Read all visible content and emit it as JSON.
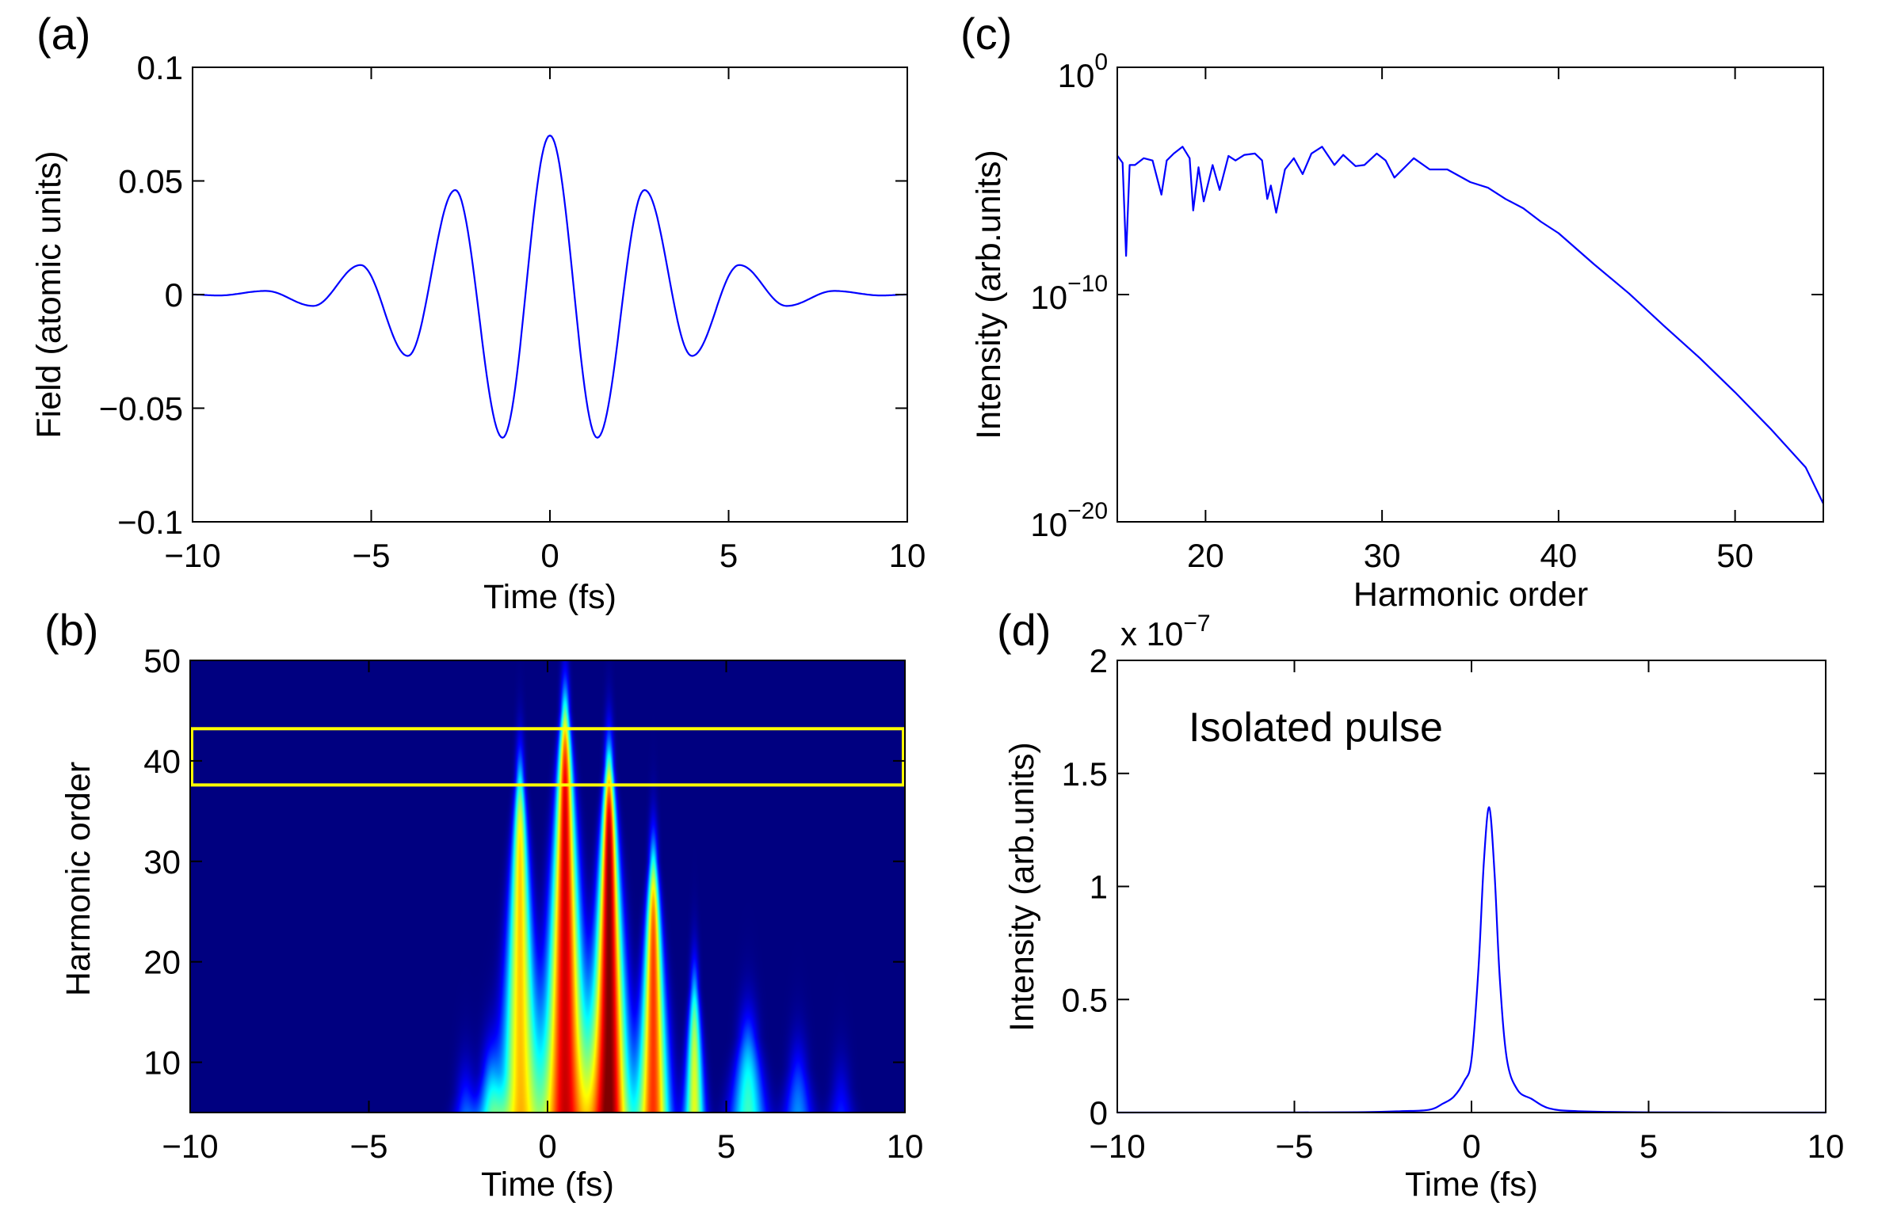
{
  "chart_data": [
    {
      "panel": "(a)",
      "type": "line",
      "xlabel": "Time (fs)",
      "ylabel": "Field (atomic units)",
      "xlim": [
        -10,
        10
      ],
      "ylim": [
        -0.1,
        0.1
      ],
      "xticks": [
        -10,
        -5,
        0,
        5,
        10
      ],
      "xtick_labels": [
        "−10",
        "−5",
        "0",
        "5",
        "10"
      ],
      "yticks": [
        -0.1,
        -0.05,
        0,
        0.05,
        0.1
      ],
      "ytick_labels": [
        "−0.1",
        "−0.05",
        "0",
        "0.05",
        "0.1"
      ],
      "line_color": "#0000ff",
      "series": [
        {
          "x": [
            -10,
            -9.275,
            -7.95,
            -6.625,
            -5.3,
            -3.975,
            -2.65,
            -1.325,
            0,
            1.325,
            2.65,
            3.975,
            5.3,
            6.625,
            7.95,
            9.275,
            10
          ],
          "y": [
            0,
            -0.0004,
            0.0016,
            -0.005,
            0.013,
            -0.027,
            0.046,
            -0.063,
            0.07,
            -0.063,
            0.046,
            -0.027,
            0.013,
            -0.005,
            0.0016,
            -0.0004,
            0
          ]
        }
      ]
    },
    {
      "panel": "(b)",
      "type": "heatmap",
      "xlabel": "Time (fs)",
      "ylabel": "Harmonic order",
      "xlim": [
        -10,
        10
      ],
      "ylim": [
        5,
        50
      ],
      "xticks": [
        -10,
        -5,
        0,
        5,
        10
      ],
      "xtick_labels": [
        "−10",
        "−5",
        "0",
        "5",
        "10"
      ],
      "yticks": [
        10,
        20,
        30,
        40,
        50
      ],
      "ytick_labels": [
        "10",
        "20",
        "30",
        "40",
        "50"
      ],
      "colormap": "jet",
      "bursts": [
        {
          "time": -2.3,
          "max_harmonic": 7,
          "relative_intensity": 0.3
        },
        {
          "time": -1.6,
          "max_harmonic": 9,
          "relative_intensity": 0.45
        },
        {
          "time": -0.78,
          "max_harmonic": 38.5,
          "relative_intensity": 0.68
        },
        {
          "time": 0.48,
          "max_harmonic": 45,
          "relative_intensity": 0.92
        },
        {
          "time": 1.71,
          "max_harmonic": 39.5,
          "relative_intensity": 1.0
        },
        {
          "time": 2.95,
          "max_harmonic": 30,
          "relative_intensity": 0.82
        },
        {
          "time": 4.1,
          "max_harmonic": 17.5,
          "relative_intensity": 0.6
        },
        {
          "time": 5.6,
          "max_harmonic": 12.5,
          "relative_intensity": 0.45
        },
        {
          "time": 7.0,
          "max_harmonic": 9.5,
          "relative_intensity": 0.3
        },
        {
          "time": 8.2,
          "max_harmonic": 7.5,
          "relative_intensity": 0.2
        }
      ],
      "highlight_box": {
        "harmonic_range": [
          37.6,
          43.2
        ],
        "time_range": [
          -10,
          10
        ],
        "color": "#ffff00"
      }
    },
    {
      "panel": "(c)",
      "type": "line",
      "xlabel": "Harmonic order",
      "ylabel": "Intensity (arb.units)",
      "yscale": "log",
      "xlim": [
        15,
        55
      ],
      "ylim": [
        1e-20,
        1
      ],
      "xticks": [
        20,
        30,
        40,
        50
      ],
      "xtick_labels": [
        "20",
        "30",
        "40",
        "50"
      ],
      "yticks": [
        1e-20,
        1e-10,
        1
      ],
      "ytick_labels": [
        {
          "base": "10",
          "exp": "−20"
        },
        {
          "base": "10",
          "exp": "−10"
        },
        {
          "base": "10",
          "exp": "0"
        }
      ],
      "line_color": "#0000ff",
      "series": [
        {
          "x": [
            15,
            15.3,
            15.5,
            15.7,
            16,
            16.5,
            17,
            17.5,
            17.8,
            18.2,
            18.7,
            19.1,
            19.3,
            19.6,
            19.9,
            20.4,
            20.8,
            21.3,
            21.7,
            22.2,
            22.8,
            23.2,
            23.5,
            23.7,
            24,
            24.5,
            25,
            25.5,
            26,
            26.6,
            27.3,
            27.8,
            28.5,
            29,
            29.7,
            30.2,
            30.7,
            31.8,
            32.7,
            33.7,
            35,
            36,
            37,
            38,
            39,
            40,
            42,
            44,
            46,
            48,
            50,
            52,
            54,
            55
          ],
          "y": [
            0.00013,
            6.3e-05,
            5e-09,
            5e-05,
            5e-05,
            0.0001,
            7.9e-05,
            2.5e-06,
            7.9e-05,
            0.00016,
            0.00032,
            0.0001,
            5e-07,
            4e-05,
            1.26e-06,
            5e-05,
            4e-06,
            0.000126,
            7.9e-05,
            0.00014,
            0.00016,
            8e-05,
            1.6e-06,
            6.3e-06,
            4e-07,
            3.2e-05,
            0.0001,
            2e-05,
            0.00016,
            0.00032,
            5e-05,
            0.00014,
            4.5e-05,
            5e-05,
            0.00016,
            8e-05,
            1.4e-05,
            0.0001,
            3.2e-05,
            3.2e-05,
            8.9e-06,
            5e-06,
            1.6e-06,
            6.3e-07,
            1.6e-07,
            5e-08,
            2.2e-09,
            1.1e-10,
            4e-12,
            1.6e-13,
            5e-15,
            1.26e-16,
            2.5e-18,
            6.3e-20
          ]
        }
      ]
    },
    {
      "panel": "(d)",
      "type": "line",
      "xlabel": "Time (fs)",
      "ylabel": "Intensity (arb.units)",
      "xlim": [
        -10,
        10
      ],
      "ylim": [
        0,
        2
      ],
      "y_multiplier": {
        "prefix": "x 10",
        "exp": "−7"
      },
      "xticks": [
        -10,
        -5,
        0,
        5,
        10
      ],
      "xtick_labels": [
        "−10",
        "−5",
        "0",
        "5",
        "10"
      ],
      "yticks": [
        0,
        0.5,
        1,
        1.5,
        2
      ],
      "ytick_labels": [
        "0",
        "0.5",
        "1",
        "1.5",
        "2"
      ],
      "annotation": "Isolated pulse",
      "line_color": "#0000ff",
      "series": [
        {
          "x": [
            -10,
            -5,
            -3,
            -2,
            -1.2,
            -0.8,
            -0.5,
            -0.2,
            0,
            0.2,
            0.35,
            0.5,
            0.65,
            0.8,
            1.0,
            1.3,
            1.7,
            2.2,
            3,
            5,
            10
          ],
          "y": [
            0,
            0.0005,
            0.002,
            0.006,
            0.012,
            0.04,
            0.07,
            0.14,
            0.235,
            0.645,
            1.11,
            1.35,
            1.06,
            0.59,
            0.235,
            0.1,
            0.06,
            0.018,
            0.006,
            0.001,
            0
          ]
        }
      ]
    }
  ]
}
